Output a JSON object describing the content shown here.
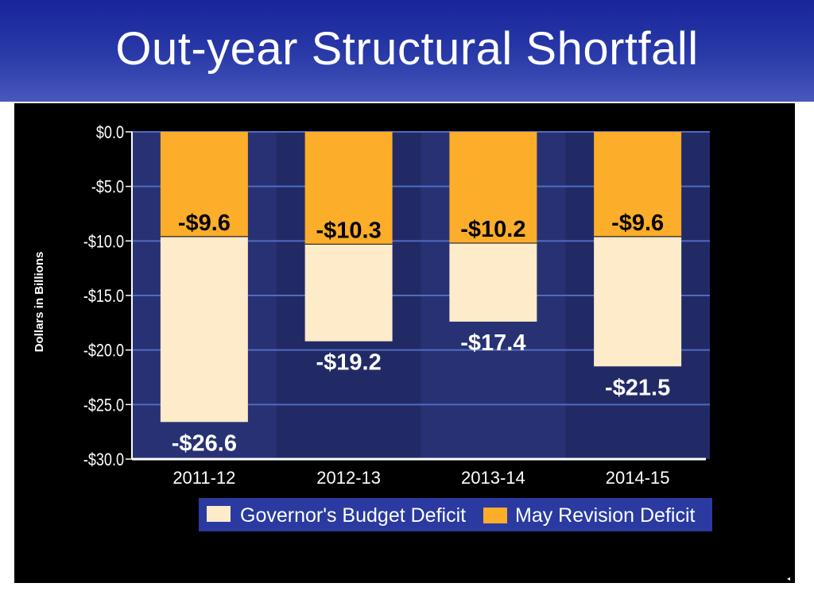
{
  "slide": {
    "title": "Out-year Structural Shortfall"
  },
  "chart_data": {
    "type": "bar",
    "stacked": true,
    "categories": [
      "2011-12",
      "2012-13",
      "2013-14",
      "2014-15"
    ],
    "series": [
      {
        "name": "May Revision Deficit",
        "values": [
          -9.6,
          -10.3,
          -10.2,
          -9.6
        ],
        "labels": [
          "-$9.6",
          "-$10.3",
          "-$10.2",
          "-$9.6"
        ],
        "color": "#fcad29",
        "label_color": "#000000"
      },
      {
        "name": "Governor's Budget Deficit",
        "values": [
          -16.9,
          -8.9,
          -7.2,
          -11.9
        ],
        "totals": [
          -26.6,
          -19.2,
          -17.4,
          -21.5
        ],
        "labels": [
          "-$26.6",
          "-$19.2",
          "-$17.4",
          "-$21.5"
        ],
        "color": "#fdebc9",
        "label_color": "#ffffff"
      }
    ],
    "ylabel": "Dollars in Billions",
    "ylim": [
      -30,
      0
    ],
    "yticks": [
      0,
      -5,
      -10,
      -15,
      -20,
      -25,
      -30
    ],
    "ytick_labels": [
      "$0.0",
      "-$5.0",
      "-$10.0",
      "-$15.0",
      "-$20.0",
      "-$25.0",
      "-$30.0"
    ],
    "grid": true,
    "legend_position": "bottom",
    "plot_background": "#222a66",
    "gridline_color": "#4f6cc0"
  }
}
